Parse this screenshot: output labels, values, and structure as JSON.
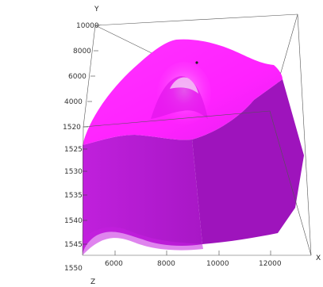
{
  "chart_data": {
    "type": "surface-3d",
    "title": "",
    "colors": {
      "top": "#ff2cff",
      "front": "#b31ed0",
      "side": "#9a12b8",
      "bottom_band": "#cc22e6",
      "edge": "#555555"
    },
    "axes": {
      "x": {
        "label": "X",
        "range": [
          5500,
          12500
        ],
        "ticks": [
          "6000",
          "8000",
          "10000",
          "12000"
        ]
      },
      "y": {
        "label": "Y",
        "range": [
          1520,
          10000
        ],
        "ticks": [
          "1520",
          "4000",
          "6000",
          "8000",
          "10000"
        ]
      },
      "z": {
        "label": "Z",
        "range": [
          1520,
          1550
        ],
        "ticks": [
          "1525",
          "1530",
          "1535",
          "1540",
          "1545",
          "1550"
        ]
      }
    },
    "grid": false,
    "legend": "none"
  }
}
